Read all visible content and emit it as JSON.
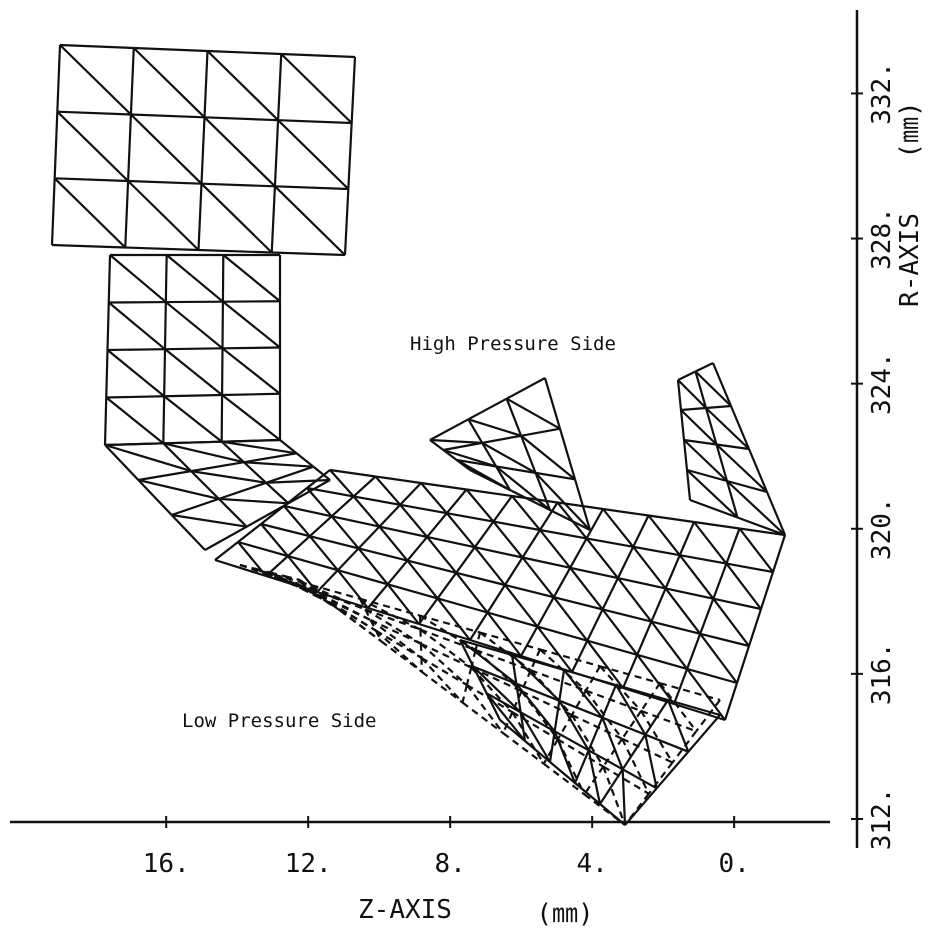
{
  "chart_data": {
    "type": "mesh",
    "x_label": "Z-AXIS",
    "x_unit": "(㎜)",
    "y_label": "R-AXIS",
    "y_unit": "(㎜)",
    "annotations": [
      "High Pressure Side",
      "Low Pressure Side"
    ],
    "xlim": [
      20.4,
      -2.7
    ],
    "xticks": [
      {
        "value": 16,
        "label": "16."
      },
      {
        "value": 12,
        "label": "12."
      },
      {
        "value": 8,
        "label": "8."
      },
      {
        "value": 4,
        "label": "4."
      },
      {
        "value": 0,
        "label": "0."
      }
    ],
    "ylim": [
      311.2,
      334.3
    ],
    "yticks": [
      {
        "value": 312,
        "label": "312."
      },
      {
        "value": 316,
        "label": "316."
      },
      {
        "value": 320,
        "label": "320."
      },
      {
        "value": 324,
        "label": "324."
      },
      {
        "value": 328,
        "label": "328."
      },
      {
        "value": 332,
        "label": "332."
      }
    ]
  }
}
